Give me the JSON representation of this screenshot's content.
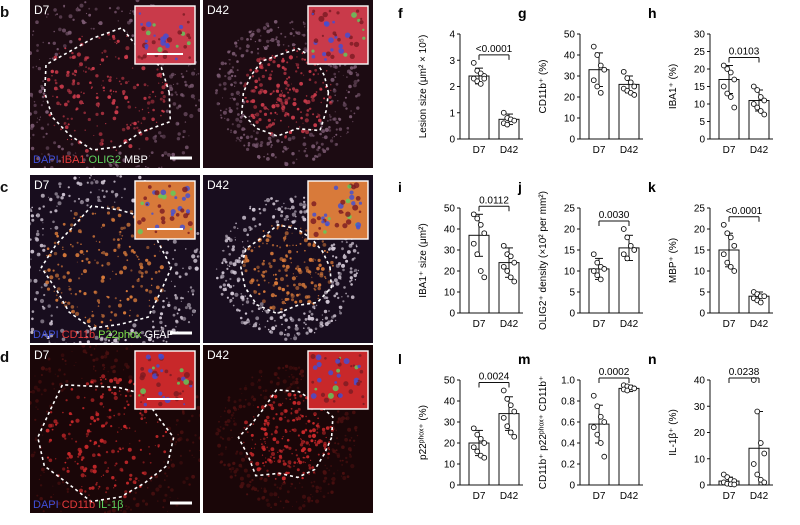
{
  "micro_rows": [
    {
      "letter": "b",
      "left_tag": "D7",
      "right_tag": "D42",
      "stains": [
        {
          "text": "DAPI",
          "color": "#3f4fd8"
        },
        {
          "text": "IBA1",
          "color": "#e43a3a"
        },
        {
          "text": "OLIG2",
          "color": "#5ccf5c"
        },
        {
          "text": "MBP",
          "color": "#ffffff"
        }
      ],
      "palette": [
        "#1c0b12",
        "#c93a4a",
        "#7b5a72"
      ]
    },
    {
      "letter": "c",
      "left_tag": "D7",
      "right_tag": "D42",
      "stains": [
        {
          "text": "DAPI",
          "color": "#3f4fd8"
        },
        {
          "text": "CD11b",
          "color": "#e43a3a"
        },
        {
          "text": "P22phox",
          "color": "#7de14a"
        },
        {
          "text": "GFAP",
          "color": "#ffffff"
        }
      ],
      "palette": [
        "#180d1e",
        "#d87a3a",
        "#d0c6d4"
      ]
    },
    {
      "letter": "d",
      "left_tag": "D7",
      "right_tag": "D42",
      "stains": [
        {
          "text": "DAPI",
          "color": "#3f4fd8"
        },
        {
          "text": "CD11b",
          "color": "#e43a3a"
        },
        {
          "text": "IL-1β",
          "color": "#5ccf5c"
        }
      ],
      "palette": [
        "#1a0608",
        "#c8282a",
        "#4a1010"
      ]
    }
  ],
  "charts": [
    {
      "letter": "f",
      "ylabel": "Lesion size (μm² × 10⁵)",
      "yticks": [
        "0",
        "1",
        "2",
        "3",
        "4"
      ],
      "p": "<0.0001",
      "chart_data": {
        "type": "bar",
        "categories": [
          "D7",
          "D42"
        ],
        "values": [
          2.4,
          0.75
        ],
        "errors": [
          0.3,
          0.2
        ],
        "ylim": [
          0,
          4
        ],
        "points": [
          [
            2.9,
            2.6,
            2.5,
            2.4,
            2.3,
            2.2,
            2.1,
            2.3
          ],
          [
            1.0,
            0.8,
            0.75,
            0.7,
            0.6,
            0.55
          ]
        ]
      }
    },
    {
      "letter": "g",
      "ylabel": "CD11b⁺ (%)",
      "yticks": [
        "0",
        "10",
        "20",
        "30",
        "40",
        "50"
      ],
      "p": "",
      "chart_data": {
        "type": "bar",
        "categories": [
          "D7",
          "D42"
        ],
        "values": [
          33,
          26
        ],
        "errors": [
          8,
          4
        ],
        "ylim": [
          0,
          50
        ],
        "points": [
          [
            44,
            40,
            35,
            33,
            28,
            25,
            22
          ],
          [
            32,
            29,
            27,
            25,
            24,
            23,
            22,
            21
          ]
        ]
      }
    },
    {
      "letter": "h",
      "ylabel": "IBA1⁺ (%)",
      "yticks": [
        "0",
        "5",
        "10",
        "15",
        "20",
        "25",
        "30"
      ],
      "p": "0.0103",
      "chart_data": {
        "type": "bar",
        "categories": [
          "D7",
          "D42"
        ],
        "values": [
          17,
          11
        ],
        "errors": [
          4,
          3
        ],
        "ylim": [
          0,
          30
        ],
        "points": [
          [
            21,
            20,
            19,
            17,
            15,
            13,
            12,
            9
          ],
          [
            15,
            14,
            12,
            11,
            10,
            9,
            8,
            7
          ]
        ]
      }
    },
    {
      "letter": "i",
      "ylabel": "IBA1⁺ size (μm²)",
      "yticks": [
        "0",
        "10",
        "20",
        "30",
        "40",
        "50"
      ],
      "p": "0.0112",
      "chart_data": {
        "type": "bar",
        "categories": [
          "D7",
          "D42"
        ],
        "values": [
          37,
          24
        ],
        "errors": [
          10,
          7
        ],
        "ylim": [
          0,
          50
        ],
        "points": [
          [
            47,
            45,
            42,
            38,
            33,
            28,
            20,
            17
          ],
          [
            32,
            28,
            27,
            24,
            22,
            20,
            17,
            15
          ]
        ]
      }
    },
    {
      "letter": "j",
      "ylabel": "OLIG2⁺ density (×10² per mm²)",
      "yticks": [
        "0",
        "5",
        "10",
        "15",
        "20",
        "25"
      ],
      "p": "0.0030",
      "chart_data": {
        "type": "bar",
        "categories": [
          "D7",
          "D42"
        ],
        "values": [
          10.5,
          15.5
        ],
        "errors": [
          2.5,
          3
        ],
        "ylim": [
          0,
          25
        ],
        "points": [
          [
            14,
            12,
            11,
            10.5,
            10,
            9,
            8
          ],
          [
            20,
            18,
            16,
            15,
            14,
            13
          ]
        ]
      }
    },
    {
      "letter": "k",
      "ylabel": "MBP⁺ (%)",
      "yticks": [
        "0",
        "5",
        "10",
        "15",
        "20",
        "25"
      ],
      "p": "<0.0001",
      "chart_data": {
        "type": "bar",
        "categories": [
          "D7",
          "D42"
        ],
        "values": [
          15,
          4
        ],
        "errors": [
          4,
          1
        ],
        "ylim": [
          0,
          25
        ],
        "points": [
          [
            21,
            19,
            18,
            16,
            14,
            12,
            11,
            10
          ],
          [
            5,
            4.5,
            4,
            4,
            3.5,
            3,
            2.5
          ]
        ]
      }
    },
    {
      "letter": "l",
      "ylabel": "p22ᵖʰᵒˣ⁺ (%)",
      "yticks": [
        "0",
        "10",
        "20",
        "30",
        "40",
        "50"
      ],
      "p": "0.0024",
      "chart_data": {
        "type": "bar",
        "categories": [
          "D7",
          "D42"
        ],
        "values": [
          20,
          34
        ],
        "errors": [
          6,
          8
        ],
        "ylim": [
          0,
          50
        ],
        "points": [
          [
            27,
            24,
            22,
            20,
            18,
            16,
            14,
            13
          ],
          [
            45,
            41,
            38,
            35,
            32,
            28,
            25,
            23
          ]
        ]
      }
    },
    {
      "letter": "m",
      "ylabel": "CD11b⁺ p22ᵖʰᵒˣ⁺ CD11b⁺",
      "yticks": [
        "0",
        "0.2",
        "0.4",
        "0.6",
        "0.8",
        "1.0"
      ],
      "p": "0.0002",
      "chart_data": {
        "type": "bar",
        "categories": [
          "D7",
          "D42"
        ],
        "values": [
          0.58,
          0.92
        ],
        "errors": [
          0.18,
          0.03
        ],
        "ylim": [
          0,
          1.0
        ],
        "points": [
          [
            0.85,
            0.75,
            0.65,
            0.6,
            0.55,
            0.48,
            0.4,
            0.27
          ],
          [
            0.95,
            0.94,
            0.93,
            0.92,
            0.91,
            0.9
          ]
        ]
      }
    },
    {
      "letter": "n",
      "ylabel": "IL-1β⁺ (%)",
      "yticks": [
        "0",
        "10",
        "20",
        "30",
        "40"
      ],
      "p": "0.0238",
      "chart_data": {
        "type": "bar",
        "categories": [
          "D7",
          "D42"
        ],
        "values": [
          1.5,
          14
        ],
        "errors": [
          1.5,
          14
        ],
        "ylim": [
          0,
          40
        ],
        "points": [
          [
            4,
            3,
            2,
            1.5,
            1,
            0.5,
            0.3,
            0.2
          ],
          [
            41,
            28,
            16,
            12,
            8,
            4,
            2,
            1
          ]
        ]
      }
    }
  ]
}
